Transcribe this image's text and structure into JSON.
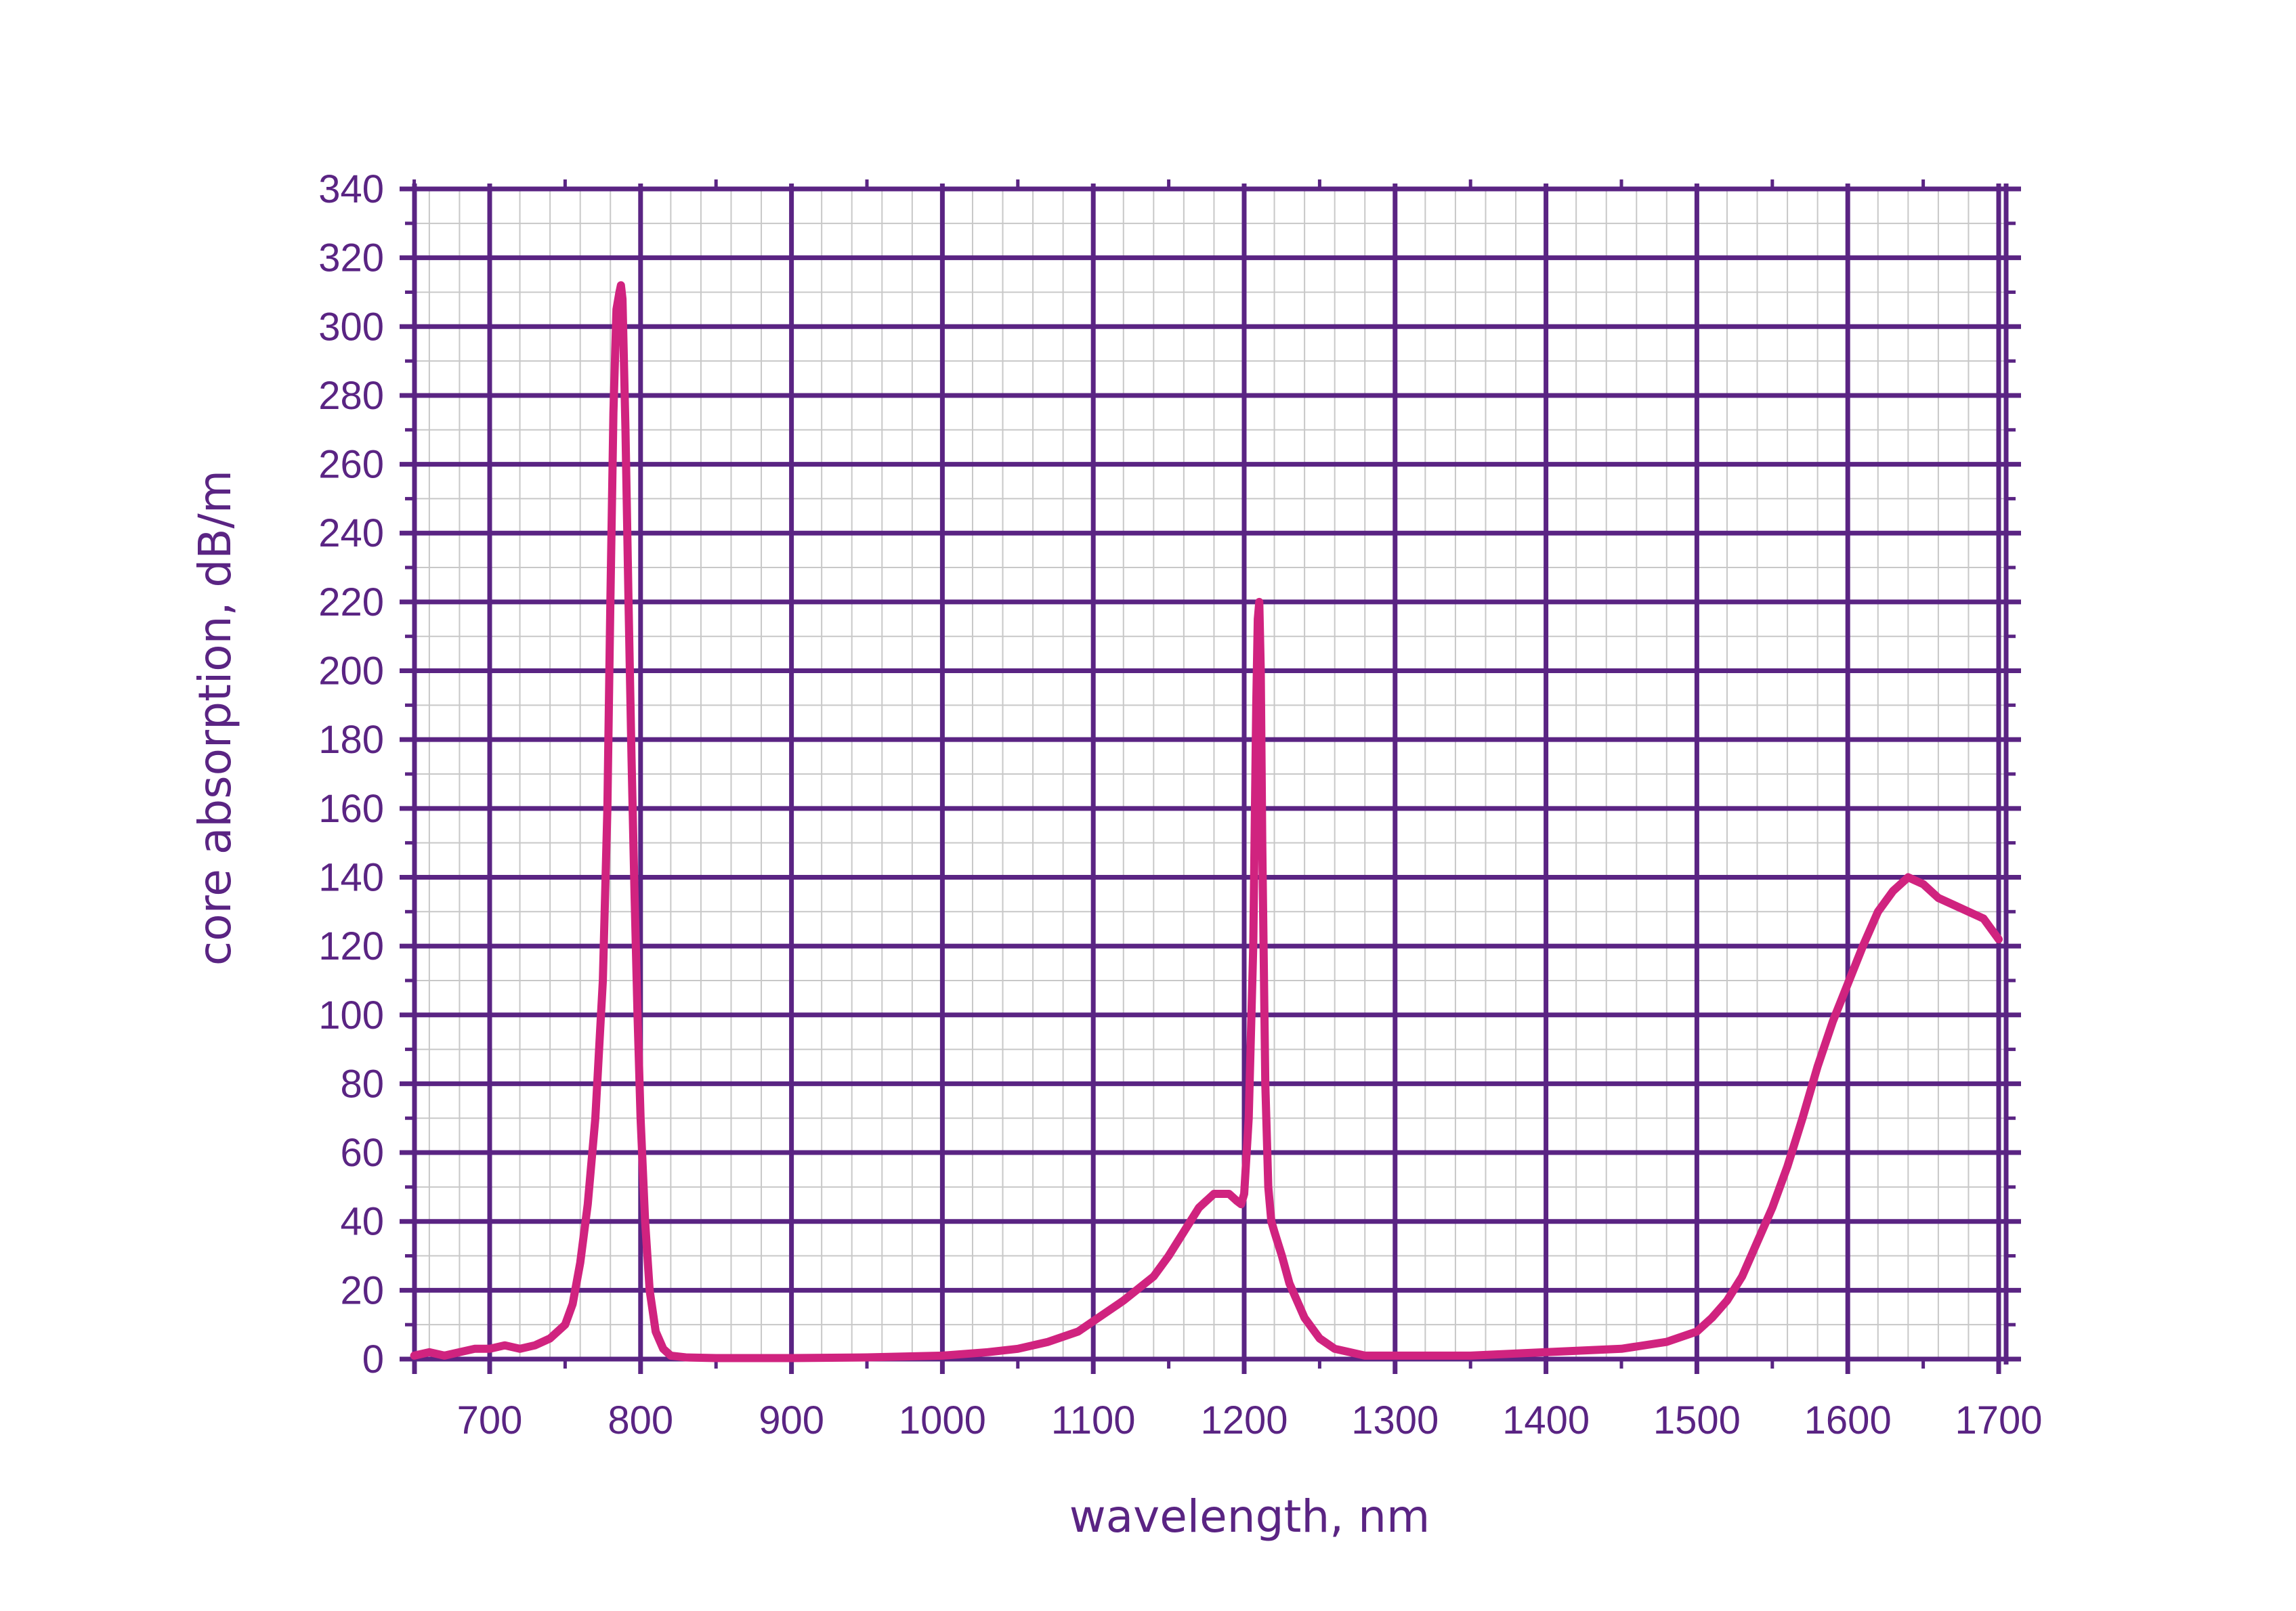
{
  "chart_data": {
    "type": "line",
    "title": "",
    "xlabel": "wavelength, nm",
    "ylabel": "core absorption, dB/m",
    "xlim": [
      650,
      1700
    ],
    "ylim": [
      0,
      340
    ],
    "xticks": [
      700,
      800,
      900,
      1000,
      1100,
      1200,
      1300,
      1400,
      1500,
      1600,
      1700
    ],
    "yticks": [
      0,
      20,
      40,
      60,
      80,
      100,
      120,
      140,
      160,
      180,
      200,
      220,
      240,
      260,
      280,
      300,
      320,
      340
    ],
    "grid": true,
    "colors": {
      "axis": "#5a2483",
      "minor_grid": "#c8c8c8",
      "series": "#d0237f"
    },
    "series": [
      {
        "x": [
          650,
          660,
          670,
          680,
          690,
          700,
          710,
          720,
          730,
          740,
          750,
          755,
          760,
          765,
          770,
          775,
          778,
          780,
          782,
          784,
          786,
          787,
          788,
          790,
          792,
          794,
          796,
          798,
          800,
          803,
          806,
          810,
          815,
          820,
          830,
          850,
          900,
          950,
          1000,
          1030,
          1050,
          1070,
          1090,
          1100,
          1120,
          1140,
          1150,
          1160,
          1170,
          1180,
          1190,
          1195,
          1198,
          1200,
          1203,
          1206,
          1208,
          1209,
          1210,
          1211,
          1212,
          1214,
          1216,
          1218,
          1220,
          1225,
          1230,
          1240,
          1250,
          1260,
          1270,
          1280,
          1290,
          1300,
          1350,
          1400,
          1450,
          1480,
          1500,
          1510,
          1520,
          1530,
          1540,
          1550,
          1560,
          1570,
          1580,
          1590,
          1600,
          1610,
          1620,
          1630,
          1640,
          1650,
          1660,
          1670,
          1680,
          1690,
          1700
        ],
        "values": [
          1,
          2,
          1,
          2,
          3,
          3,
          4,
          3,
          4,
          6,
          10,
          16,
          28,
          45,
          70,
          110,
          160,
          220,
          275,
          305,
          310,
          312,
          308,
          270,
          220,
          175,
          135,
          100,
          70,
          40,
          20,
          8,
          3,
          1,
          0.5,
          0.3,
          0.3,
          0.5,
          1,
          2,
          3,
          5,
          8,
          11,
          17,
          24,
          30,
          37,
          44,
          48,
          48,
          46,
          45,
          48,
          70,
          120,
          190,
          215,
          220,
          200,
          150,
          80,
          50,
          40,
          37,
          30,
          22,
          12,
          6,
          3,
          2,
          1,
          1,
          1,
          1,
          2,
          3,
          5,
          8,
          12,
          17,
          24,
          34,
          44,
          56,
          70,
          85,
          98,
          109,
          120,
          130,
          136,
          140,
          138,
          134,
          132,
          130,
          128,
          122
        ]
      }
    ]
  }
}
